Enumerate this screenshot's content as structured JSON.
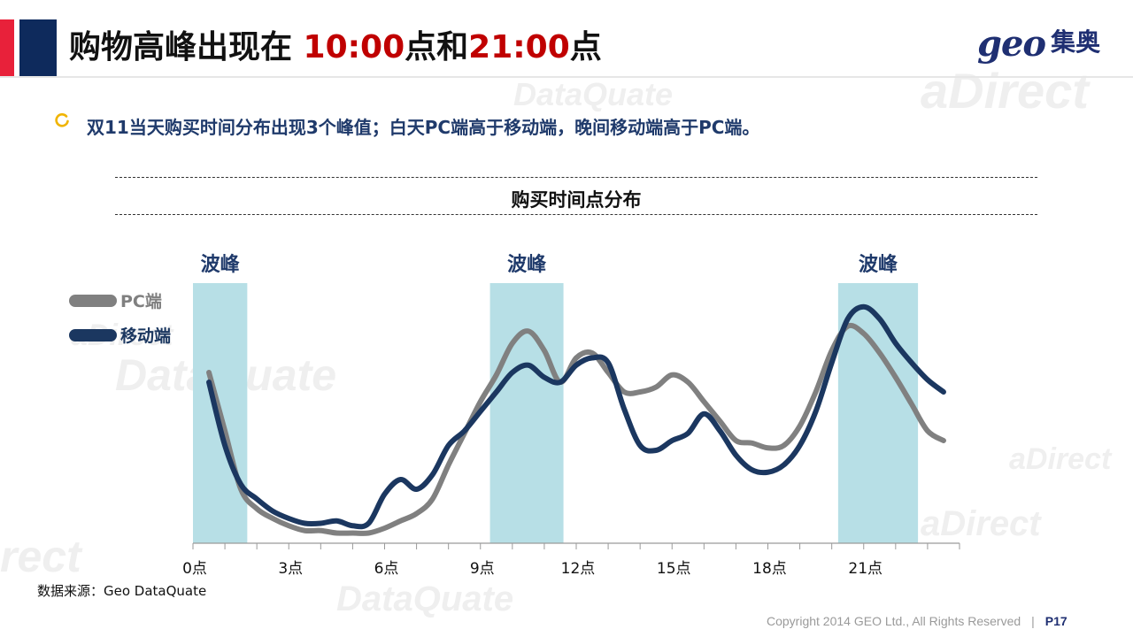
{
  "header": {
    "title_prefix": "购物高峰出现在 ",
    "title_time1": "10:00",
    "title_mid": "点和",
    "title_time2": "21:00",
    "title_suffix": "点",
    "logo_geo": "geo",
    "logo_cn": "集奥"
  },
  "subtitle": "双11当天购买时间分布出现3个峰值；白天PC端高于移动端，晚间移动端高于PC端。",
  "source": "数据来源：Geo DataQuate",
  "footer": {
    "copyright": "Copyright 2014 GEO Ltd., All Rights Reserved",
    "page": "P17"
  },
  "background_words": [
    "aDirect",
    "DataQuate",
    "aDirect",
    "DataQuate",
    "rect",
    "aDirect",
    "DataQuate",
    "aDirect"
  ],
  "colors": {
    "accent_red": "#e8213a",
    "accent_navy": "#0e2a5c",
    "highlight": "#c00000",
    "pc": "#808080",
    "mobile": "#1b3760",
    "peak_band": "#b7dfe6",
    "subtitle": "#1f3a6b"
  },
  "chart_data": {
    "type": "line",
    "title": "购买时间点分布",
    "xlabel": "",
    "ylabel": "",
    "x_ticks": [
      "0点",
      "3点",
      "6点",
      "9点",
      "12点",
      "15点",
      "18点",
      "21点"
    ],
    "x_range": [
      0,
      24
    ],
    "y_range": [
      0,
      100
    ],
    "y_axis_shown": false,
    "grid": false,
    "legend_position": "left",
    "peak_label": "波峰",
    "peak_bands": [
      [
        0,
        1.7
      ],
      [
        9.3,
        11.6
      ],
      [
        20.2,
        22.7
      ]
    ],
    "series": [
      {
        "name": "PC端",
        "color": "#808080",
        "x": [
          0.5,
          1,
          1.5,
          2,
          2.5,
          3,
          3.5,
          4,
          4.5,
          5,
          5.5,
          6,
          6.5,
          7,
          7.5,
          8,
          8.5,
          9,
          9.5,
          10,
          10.5,
          11,
          11.5,
          12,
          12.5,
          13,
          13.5,
          14,
          14.5,
          15,
          15.5,
          16,
          16.5,
          17,
          17.5,
          18,
          18.5,
          19,
          19.5,
          20,
          20.5,
          21,
          21.5,
          22,
          22.5,
          23,
          23.5
        ],
        "values": [
          68,
          44,
          20,
          12,
          8,
          5,
          3,
          3,
          2,
          2,
          2,
          4,
          7,
          10,
          16,
          30,
          43,
          56,
          67,
          80,
          85,
          77,
          64,
          74,
          76,
          68,
          60,
          60,
          62,
          67,
          64,
          56,
          48,
          40,
          39,
          37,
          38,
          46,
          60,
          77,
          87,
          84,
          76,
          66,
          55,
          44,
          40
        ]
      },
      {
        "name": "移动端",
        "color": "#1b3760",
        "x": [
          0.5,
          1,
          1.5,
          2,
          2.5,
          3,
          3.5,
          4,
          4.5,
          5,
          5.5,
          6,
          6.5,
          7,
          7.5,
          8,
          8.5,
          9,
          9.5,
          10,
          10.5,
          11,
          11.5,
          12,
          12.5,
          13,
          13.5,
          14,
          14.5,
          15,
          15.5,
          16,
          16.5,
          17,
          17.5,
          18,
          18.5,
          19,
          19.5,
          20,
          20.5,
          21,
          21.5,
          22,
          22.5,
          23,
          23.5
        ],
        "values": [
          64,
          38,
          22,
          16,
          11,
          8,
          6,
          6,
          7,
          5,
          6,
          18,
          24,
          20,
          26,
          38,
          44,
          52,
          60,
          68,
          71,
          66,
          64,
          71,
          74,
          72,
          53,
          38,
          36,
          40,
          43,
          51,
          44,
          34,
          28,
          27,
          30,
          38,
          52,
          72,
          90,
          95,
          90,
          80,
          72,
          65,
          60
        ]
      }
    ]
  }
}
